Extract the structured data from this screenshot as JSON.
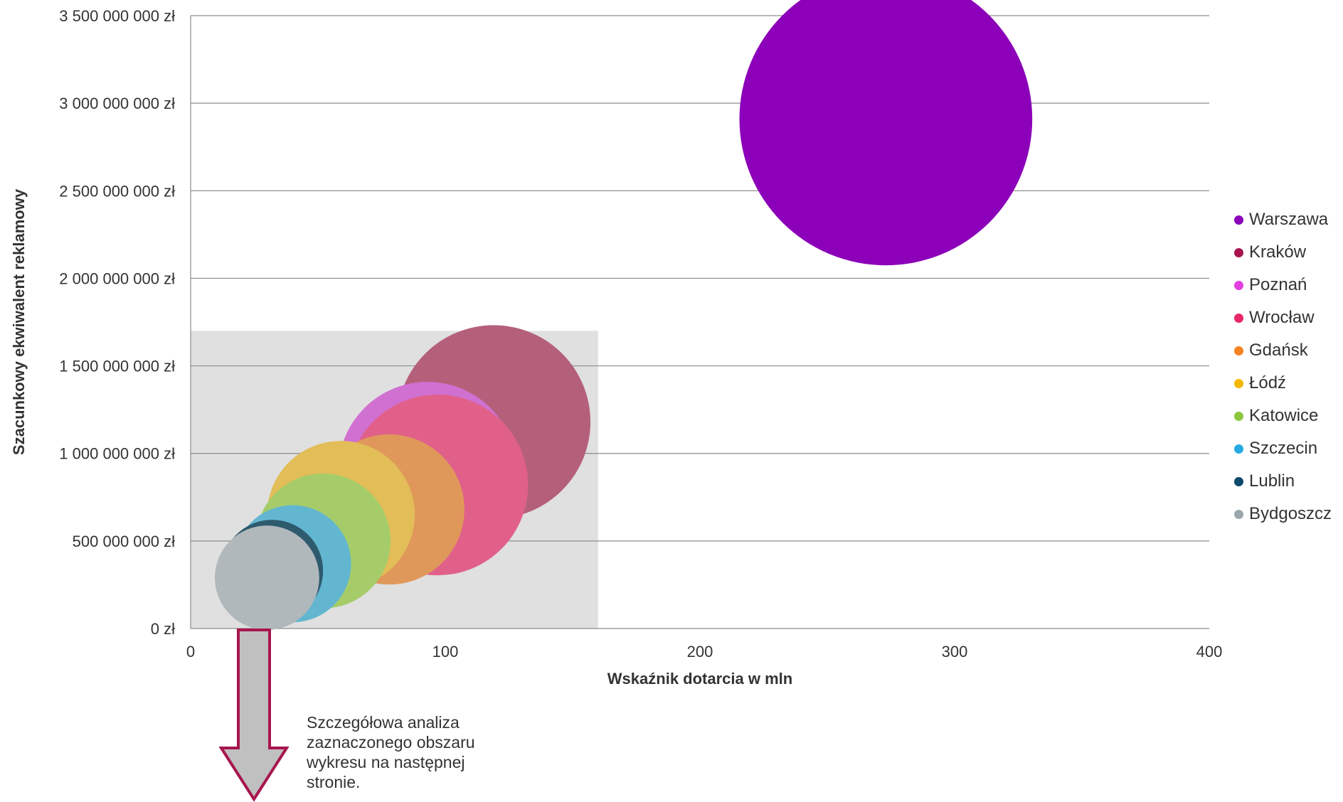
{
  "chart_data": {
    "type": "bubble",
    "xlabel": "Wskaźnik dotarcia w mln",
    "ylabel": "Szacunkowy ekwiwalent reklamowy",
    "xlim": [
      0,
      400
    ],
    "ylim": [
      0,
      3500000000
    ],
    "x_ticks": [
      0,
      100,
      200,
      300,
      400
    ],
    "x_tick_labels": [
      "0",
      "100",
      "200",
      "300",
      "400"
    ],
    "y_ticks": [
      0,
      500000000,
      1000000000,
      1500000000,
      2000000000,
      2500000000,
      3000000000,
      3500000000
    ],
    "y_tick_labels": [
      "0 zł",
      "500 000 000 zł",
      "1 000 000 000 zł",
      "1 500 000 000 zł",
      "2 000 000 000 zł",
      "2 500 000 000 zł",
      "3 000 000 000 zł",
      "3 500 000 000 zł"
    ],
    "grid": "horizontal",
    "legend_position": "right",
    "highlight_region": {
      "x": [
        0,
        160
      ],
      "y": [
        0,
        1700000000
      ],
      "color": "#e0e0e0"
    },
    "series": [
      {
        "name": "Warszawa",
        "x": 273,
        "y": 2910000000,
        "size": 115,
        "color": "#8b00b8"
      },
      {
        "name": "Kraków",
        "x": 119,
        "y": 1180000000,
        "size": 76,
        "color": "#b5607a"
      },
      {
        "name": "Poznań",
        "x": 93,
        "y": 900000000,
        "size": 70,
        "color": "#d070d0"
      },
      {
        "name": "Wrocław",
        "x": 97,
        "y": 820000000,
        "size": 71,
        "color": "#e0608a"
      },
      {
        "name": "Gdańsk",
        "x": 78,
        "y": 680000000,
        "size": 59,
        "color": "#e0985a"
      },
      {
        "name": "Łódź",
        "x": 59,
        "y": 650000000,
        "size": 58,
        "color": "#e2bd58"
      },
      {
        "name": "Katowice",
        "x": 52,
        "y": 500000000,
        "size": 53,
        "color": "#a6cc6a"
      },
      {
        "name": "Szczecin",
        "x": 40,
        "y": 370000000,
        "size": 46,
        "color": "#62b6d0"
      },
      {
        "name": "Lublin",
        "x": 32,
        "y": 330000000,
        "size": 40,
        "color": "#2e5a6e"
      },
      {
        "name": "Bydgoszcz",
        "x": 30,
        "y": 290000000,
        "size": 41,
        "color": "#b0b8bc"
      }
    ],
    "legend_colors": [
      "#8b00b8",
      "#a8154e",
      "#e040e0",
      "#e8266a",
      "#f58220",
      "#f5b800",
      "#8cc63f",
      "#27aae1",
      "#0b4a6a",
      "#9aa8ae"
    ]
  },
  "annotation": {
    "text": "Szczegółowa analiza\nzaznaczonego obszaru\nwykresu na następnej\nstronie.",
    "arrow_fill": "#c0c0c0",
    "arrow_stroke": "#a8154e"
  }
}
